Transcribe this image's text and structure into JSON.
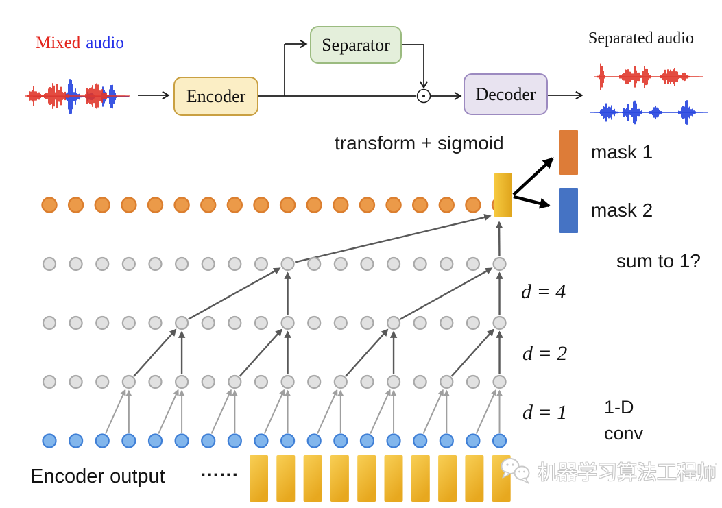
{
  "pipeline": {
    "mixed_audio": {
      "word_red": "Mixed",
      "word_blue": "audio",
      "red_color": "#E3251D",
      "blue_color": "#2430E8"
    },
    "boxes": [
      {
        "id": "encoder",
        "label": "Encoder",
        "fill": "#FBEEC5",
        "border": "#C9A042"
      },
      {
        "id": "separator",
        "label": "Separator",
        "fill": "#E4EFDB",
        "border": "#9BBB80"
      },
      {
        "id": "decoder",
        "label": "Decoder",
        "fill": "#E8E3F0",
        "border": "#9C8AC0"
      }
    ],
    "multiply_symbol": "⊙",
    "separated_audio_label": "Separated audio",
    "waveform_red": "#E0382C",
    "waveform_blue": "#2443DF"
  },
  "mask_section": {
    "transform_label": "transform + sigmoid",
    "masks": [
      {
        "label": "mask 1",
        "color": "#DD7C38"
      },
      {
        "label": "mask 2",
        "color": "#4573C4"
      }
    ],
    "sum_question": "sum to 1?",
    "output_bar_gradient": [
      "#F6C93F",
      "#DFA41C"
    ]
  },
  "lattice": {
    "columns": 18,
    "rows": [
      {
        "name": "mask-output",
        "color": "#EB9A49",
        "stroke": "#DB7E2E"
      },
      {
        "name": "hidden-top",
        "color": "#E1E1E1",
        "stroke": "#A9A9A9"
      },
      {
        "name": "hidden-middle",
        "color": "#E1E1E1",
        "stroke": "#A9A9A9"
      },
      {
        "name": "hidden-bottom",
        "color": "#E1E1E1",
        "stroke": "#A9A9A9"
      },
      {
        "name": "input",
        "color": "#82B6EC",
        "stroke": "#3F7FD6"
      }
    ],
    "connections": [
      {
        "label": "d = 1",
        "dilation": 1,
        "from_row": 4,
        "to_row": 3,
        "targets": [
          3,
          5,
          7,
          9,
          11,
          13,
          15,
          17
        ],
        "color": "#9F9F9F"
      },
      {
        "label": "d = 2",
        "dilation": 2,
        "from_row": 3,
        "to_row": 2,
        "targets": [
          5,
          9,
          13,
          17
        ],
        "color": "#595959"
      },
      {
        "label": "d = 4",
        "dilation": 4,
        "from_row": 2,
        "to_row": 1,
        "targets": [
          9,
          17
        ],
        "color": "#595959"
      }
    ],
    "bar_inputs": {
      "slant_from": 9,
      "vertical_from": 17,
      "color": "#595959"
    },
    "conv_label_line1": "1-D",
    "conv_label_line2": "conv"
  },
  "bottom": {
    "encoder_output_label": "Encoder output",
    "ellipsis": "......",
    "bar_count": 10,
    "bar_gradient": [
      "#F8CF55",
      "#E7A81F"
    ]
  },
  "watermark": {
    "text": "机器学习算法工程师",
    "icon": "wechat-chat-bubbles"
  }
}
